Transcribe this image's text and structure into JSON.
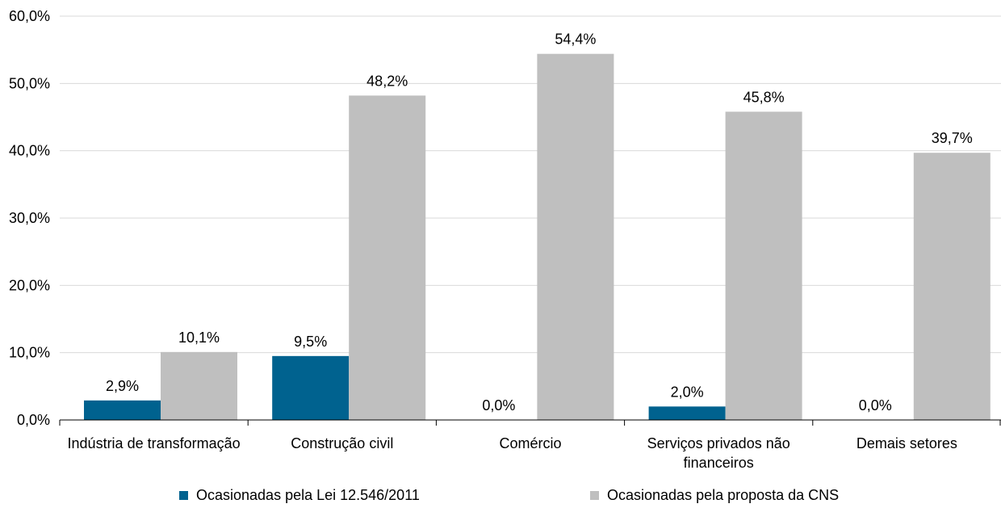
{
  "chart_data": {
    "type": "bar",
    "categories": [
      [
        "Indústria de transformação"
      ],
      [
        "Construção civil"
      ],
      [
        "Comércio"
      ],
      [
        "Serviços privados não",
        "financeiros"
      ],
      [
        "Demais setores"
      ]
    ],
    "series": [
      {
        "name": "Ocasionadas pela Lei 12.546/2011",
        "color": "#00628F",
        "values": [
          2.9,
          9.5,
          0.0,
          2.0,
          0.0
        ],
        "labels": [
          "2,9%",
          "9,5%",
          "0,0%",
          "2,0%",
          "0,0%"
        ]
      },
      {
        "name": "Ocasionadas pela proposta da CNS",
        "color": "#BFBFBF",
        "values": [
          10.1,
          48.2,
          54.4,
          45.8,
          39.7
        ],
        "labels": [
          "10,1%",
          "48,2%",
          "54,4%",
          "45,8%",
          "39,7%"
        ]
      }
    ],
    "yticks": [
      0,
      10,
      20,
      30,
      40,
      50,
      60
    ],
    "ytick_labels": [
      "0,0%",
      "10,0%",
      "20,0%",
      "30,0%",
      "40,0%",
      "50,0%",
      "60,0%"
    ],
    "ylim": [
      0,
      60
    ],
    "grid": true,
    "grid_color": "#D9D9D9",
    "legend_position": "bottom"
  }
}
